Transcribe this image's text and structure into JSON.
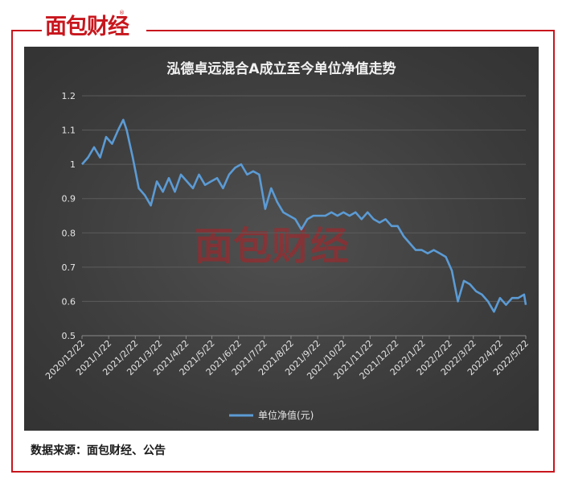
{
  "brand": {
    "logo_text": "面包财经",
    "registered_mark": "®",
    "watermark_text": "面包财经"
  },
  "source_note": "数据来源：面包财经、公告",
  "chart_data": {
    "type": "line",
    "title": "泓德卓远混合A成立至今单位净值走势",
    "xlabel": "",
    "ylabel": "",
    "ylim": [
      0.5,
      1.2
    ],
    "yticks": [
      "0.5",
      "0.6",
      "0.7",
      "0.8",
      "0.9",
      "1",
      "1.1",
      "1.2"
    ],
    "xticks": [
      "2020/12/22",
      "2021/1/22",
      "2021/2/22",
      "2021/3/22",
      "2021/4/22",
      "2021/5/22",
      "2021/6/22",
      "2021/7/22",
      "2021/8/22",
      "2021/9/22",
      "2021/10/22",
      "2021/11/22",
      "2021/12/22",
      "2022/1/22",
      "2022/2/22",
      "2022/3/22",
      "2022/4/22",
      "2022/5/22"
    ],
    "grid": true,
    "legend_position": "bottom",
    "line_color": "#5b9bd5",
    "series": [
      {
        "name": "单位净值(元)",
        "x": [
          "2020/12/22",
          "2020/12/29",
          "2021/1/5",
          "2021/1/12",
          "2021/1/19",
          "2021/1/26",
          "2021/2/2",
          "2021/2/8",
          "2021/2/12",
          "2021/2/19",
          "2021/2/26",
          "2021/3/5",
          "2021/3/12",
          "2021/3/19",
          "2021/3/26",
          "2021/4/2",
          "2021/4/9",
          "2021/4/16",
          "2021/4/23",
          "2021/4/30",
          "2021/5/7",
          "2021/5/14",
          "2021/5/21",
          "2021/5/28",
          "2021/6/4",
          "2021/6/11",
          "2021/6/18",
          "2021/6/25",
          "2021/7/2",
          "2021/7/9",
          "2021/7/16",
          "2021/7/23",
          "2021/7/30",
          "2021/8/6",
          "2021/8/13",
          "2021/8/20",
          "2021/8/27",
          "2021/9/3",
          "2021/9/10",
          "2021/9/17",
          "2021/9/24",
          "2021/10/1",
          "2021/10/8",
          "2021/10/15",
          "2021/10/22",
          "2021/10/29",
          "2021/11/5",
          "2021/11/12",
          "2021/11/19",
          "2021/11/26",
          "2021/12/3",
          "2021/12/10",
          "2021/12/17",
          "2021/12/24",
          "2021/12/31",
          "2022/1/7",
          "2022/1/14",
          "2022/1/21",
          "2022/1/28",
          "2022/2/4",
          "2022/2/11",
          "2022/2/18",
          "2022/2/25",
          "2022/3/4",
          "2022/3/11",
          "2022/3/18",
          "2022/3/25",
          "2022/4/1",
          "2022/4/8",
          "2022/4/15",
          "2022/4/22",
          "2022/4/29",
          "2022/5/6",
          "2022/5/13",
          "2022/5/20",
          "2022/5/22"
        ],
        "values": [
          1.0,
          1.02,
          1.05,
          1.02,
          1.08,
          1.06,
          1.1,
          1.13,
          1.1,
          1.02,
          0.93,
          0.91,
          0.88,
          0.95,
          0.92,
          0.96,
          0.92,
          0.97,
          0.95,
          0.93,
          0.97,
          0.94,
          0.95,
          0.96,
          0.93,
          0.97,
          0.99,
          1.0,
          0.97,
          0.98,
          0.97,
          0.87,
          0.93,
          0.89,
          0.86,
          0.85,
          0.84,
          0.81,
          0.84,
          0.85,
          0.85,
          0.85,
          0.86,
          0.85,
          0.86,
          0.85,
          0.86,
          0.84,
          0.86,
          0.84,
          0.83,
          0.84,
          0.82,
          0.82,
          0.79,
          0.77,
          0.75,
          0.75,
          0.74,
          0.75,
          0.74,
          0.73,
          0.69,
          0.6,
          0.66,
          0.65,
          0.63,
          0.62,
          0.6,
          0.57,
          0.61,
          0.59,
          0.61,
          0.61,
          0.62,
          0.59
        ]
      }
    ]
  }
}
